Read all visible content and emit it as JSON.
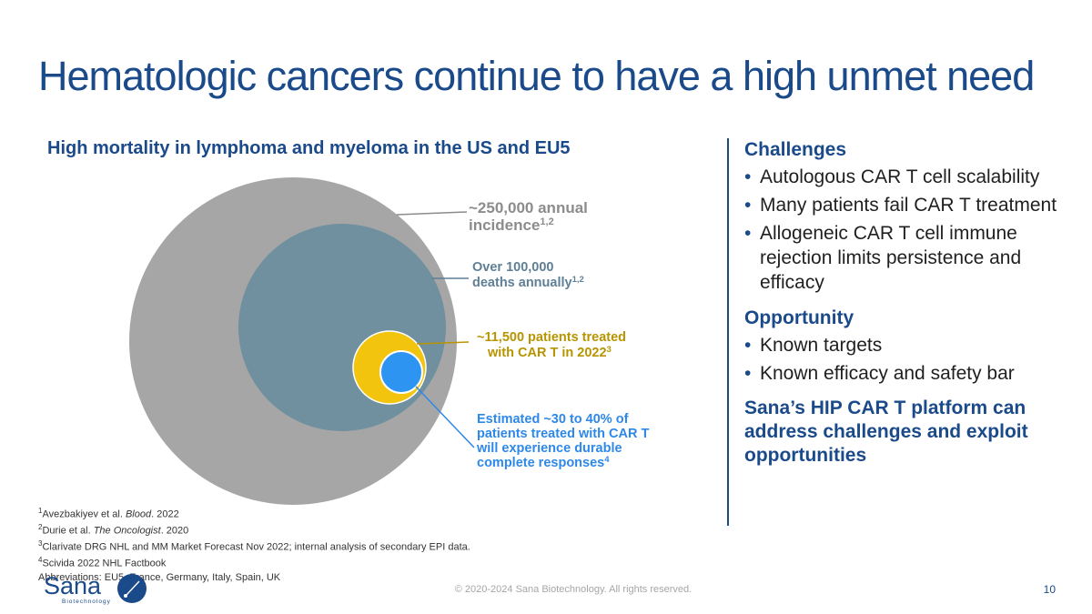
{
  "header": {
    "title": "Hematologic cancers continue to have a high unmet need",
    "subtitle": "High mortality in lymphoma and myeloma in the US and EU5"
  },
  "diagram": {
    "circles": [
      {
        "name": "incidence",
        "lines": [
          "~250,000 annual",
          "incidence"
        ],
        "sup": "1,2",
        "color": "#a6a6a6",
        "label_color": "#8c8c8c"
      },
      {
        "name": "deaths",
        "lines": [
          "Over 100,000",
          "deaths annually"
        ],
        "sup": "1,2",
        "color": "#71909f",
        "label_color": "#5e7f95"
      },
      {
        "name": "car-t-treated",
        "lines": [
          "~11,500 patients treated",
          "with CAR T in 2022"
        ],
        "sup": "3",
        "color": "#f2c40d",
        "label_color": "#b79400"
      },
      {
        "name": "durable-responses",
        "lines": [
          "Estimated ~30 to 40% of",
          "patients treated with CAR T",
          "will experience durable",
          "complete responses"
        ],
        "sup": "4",
        "color": "#2e94f2",
        "label_color": "#2e88e8"
      }
    ]
  },
  "right_panel": {
    "challenges_heading": "Challenges",
    "challenges": [
      "Autologous CAR T cell scalability",
      "Many patients fail CAR T treatment",
      "Allogeneic CAR T cell immune rejection limits persistence and efficacy"
    ],
    "opportunity_heading": "Opportunity",
    "opportunities": [
      "Known targets",
      "Known efficacy and safety bar"
    ],
    "conclusion": "Sana’s HIP CAR T platform can address challenges and exploit opportunities"
  },
  "footnotes": [
    {
      "sup": "1",
      "pre": "Avezbakiyev et al. ",
      "italic": "Blood",
      "post": ". 2022"
    },
    {
      "sup": "2",
      "pre": "Durie et al. ",
      "italic": "The Oncologist",
      "post": ". 2020"
    },
    {
      "sup": "3",
      "pre": "Clarivate DRG NHL and MM Market Forecast Nov 2022; internal analysis of secondary EPI data.",
      "italic": "",
      "post": ""
    },
    {
      "sup": "4",
      "pre": "Scivida 2022 NHL Factbook",
      "italic": "",
      "post": ""
    },
    {
      "sup": "",
      "pre": "Abbreviations: EU5, France, Germany, Italy, Spain, UK",
      "italic": "",
      "post": ""
    }
  ],
  "footer": {
    "logo_text": "Sana",
    "logo_subtext": "Biotechnology",
    "logo_color": "#1a4a8a",
    "copyright": "© 2020-2024 Sana Biotechnology. All rights reserved.",
    "page_number": "10"
  }
}
